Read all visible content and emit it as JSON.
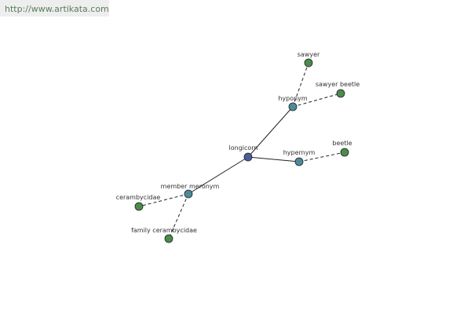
{
  "header": {
    "url": "http://www.artikata.com"
  },
  "nodes": [
    {
      "label": "longicorn"
    },
    {
      "label": "hyponym"
    },
    {
      "label": "hypernym"
    },
    {
      "label": "member meronym"
    },
    {
      "label": "sawyer"
    },
    {
      "label": "sawyer beetle"
    },
    {
      "label": "beetle"
    },
    {
      "label": "cerambycidae"
    },
    {
      "label": "family cerambycidae"
    }
  ]
}
